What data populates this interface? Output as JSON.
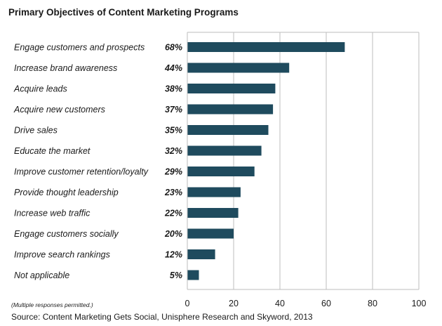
{
  "chart_data": {
    "type": "bar",
    "orientation": "horizontal",
    "title": "Primary Objectives of Content Marketing Programs",
    "categories": [
      "Engage customers and prospects",
      "Increase brand awareness",
      "Acquire leads",
      "Acquire new customers",
      "Drive sales",
      "Educate the market",
      "Improve customer retention/loyalty",
      "Provide thought leadership",
      "Increase web traffic",
      "Engage customers socially",
      "Improve search rankings",
      "Not applicable"
    ],
    "values": [
      68,
      44,
      38,
      37,
      35,
      32,
      29,
      23,
      22,
      20,
      12,
      5
    ],
    "value_labels": [
      "68%",
      "44%",
      "38%",
      "37%",
      "35%",
      "32%",
      "29%",
      "23%",
      "22%",
      "20%",
      "12%",
      "5%"
    ],
    "xlim": [
      0,
      100
    ],
    "xticks": [
      0,
      20,
      40,
      60,
      80,
      100
    ],
    "grid": "vertical",
    "bar_color": "#1f4b5e",
    "grid_color": "#bdbdbd",
    "note": "(Multiple responses permitted.)",
    "source": "Source: Content Marketing Gets Social, Unisphere Research and Skyword, 2013"
  }
}
